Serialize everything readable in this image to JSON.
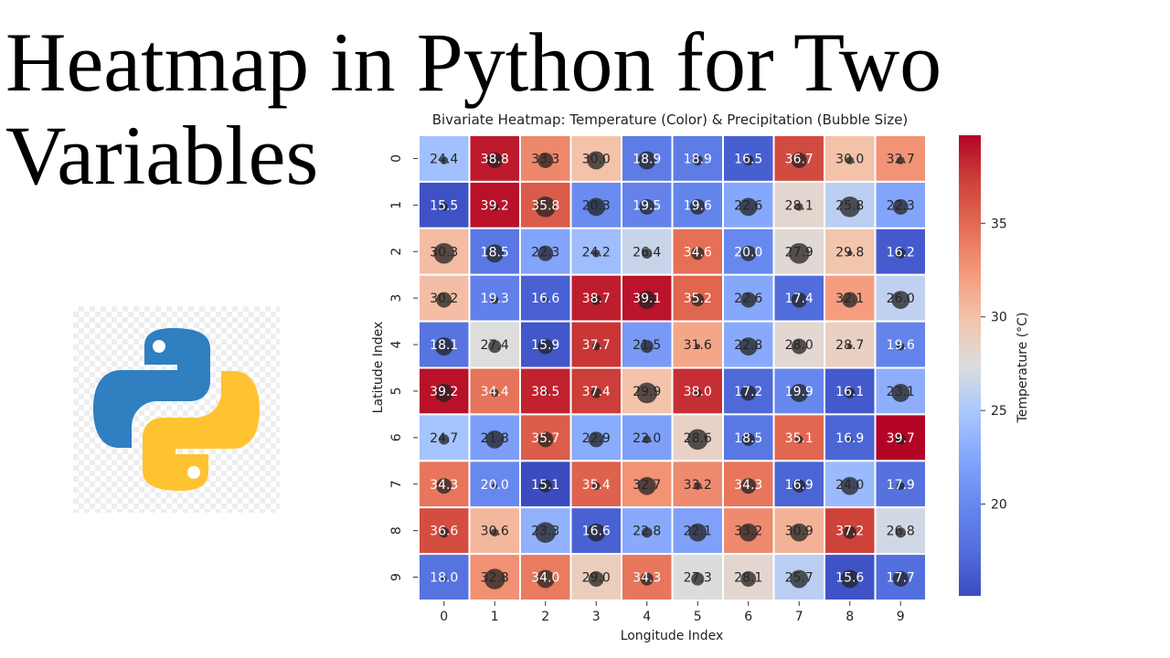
{
  "heading": {
    "line1": "Heatmap in Python for Two",
    "line2": "Variables"
  },
  "logo": {
    "name": "python-logo",
    "colors": {
      "blue": "#2f7fc1",
      "yellow": "#ffc331"
    }
  },
  "chart_data": {
    "type": "heatmap",
    "title": "Bivariate Heatmap: Temperature (Color) & Precipitation (Bubble Size)",
    "xlabel": "Longitude Index",
    "ylabel": "Latitude Index",
    "x_categories": [
      "0",
      "1",
      "2",
      "3",
      "4",
      "5",
      "6",
      "7",
      "8",
      "9"
    ],
    "y_categories": [
      "0",
      "1",
      "2",
      "3",
      "4",
      "5",
      "6",
      "7",
      "8",
      "9"
    ],
    "colormap": "coolwarm",
    "colorbar": {
      "label": "Temperature (°C)",
      "ticks": [
        "20",
        "25",
        "30",
        "35"
      ],
      "range": [
        15.1,
        39.7
      ]
    },
    "temperature": [
      [
        24.4,
        38.8,
        33.3,
        30.0,
        18.9,
        18.9,
        16.5,
        36.7,
        30.0,
        32.7
      ],
      [
        15.5,
        39.2,
        35.8,
        20.3,
        19.5,
        19.6,
        22.6,
        28.1,
        25.8,
        22.3
      ],
      [
        30.3,
        18.5,
        22.3,
        24.2,
        26.4,
        34.6,
        20.0,
        27.9,
        29.8,
        16.2
      ],
      [
        30.2,
        19.3,
        16.6,
        38.7,
        39.1,
        35.2,
        22.6,
        17.4,
        32.1,
        26.0
      ],
      [
        18.1,
        27.4,
        15.9,
        37.7,
        21.5,
        31.6,
        22.8,
        28.0,
        28.7,
        19.6
      ],
      [
        39.2,
        34.4,
        38.5,
        37.4,
        29.9,
        38.0,
        17.2,
        19.9,
        16.1,
        23.1
      ],
      [
        24.7,
        21.8,
        35.7,
        22.9,
        22.0,
        28.6,
        18.5,
        35.1,
        16.9,
        39.7
      ],
      [
        34.3,
        20.0,
        15.1,
        35.4,
        32.7,
        33.2,
        34.3,
        16.9,
        24.0,
        17.9
      ],
      [
        36.6,
        30.6,
        23.3,
        16.6,
        22.8,
        22.1,
        33.2,
        30.9,
        37.2,
        26.8
      ],
      [
        18.0,
        32.8,
        34.0,
        29.0,
        34.3,
        27.3,
        28.1,
        25.7,
        15.6,
        17.7
      ]
    ],
    "precipitation_relative": [
      [
        2,
        5,
        5,
        6,
        6,
        3,
        3,
        5,
        2,
        2
      ],
      [
        2,
        2,
        7,
        6,
        5,
        5,
        6,
        2,
        7,
        5
      ],
      [
        7,
        6,
        5,
        2,
        3,
        4,
        5,
        7,
        1,
        3
      ],
      [
        5,
        2,
        1,
        3,
        6,
        4,
        5,
        5,
        5,
        6
      ],
      [
        6,
        4,
        5,
        2,
        4,
        1,
        6,
        5,
        1,
        2
      ],
      [
        6,
        2,
        1,
        3,
        7,
        2,
        5,
        6,
        3,
        6
      ],
      [
        3,
        6,
        5,
        5,
        2,
        7,
        4,
        2,
        1,
        3
      ],
      [
        5,
        1,
        4,
        2,
        6,
        2,
        5,
        4,
        6,
        2
      ],
      [
        3,
        2,
        7,
        6,
        3,
        6,
        6,
        6,
        4,
        3
      ],
      [
        1,
        7,
        6,
        5,
        4,
        4,
        5,
        6,
        6,
        5
      ]
    ],
    "bubble_color": "#222222",
    "grid": false
  }
}
